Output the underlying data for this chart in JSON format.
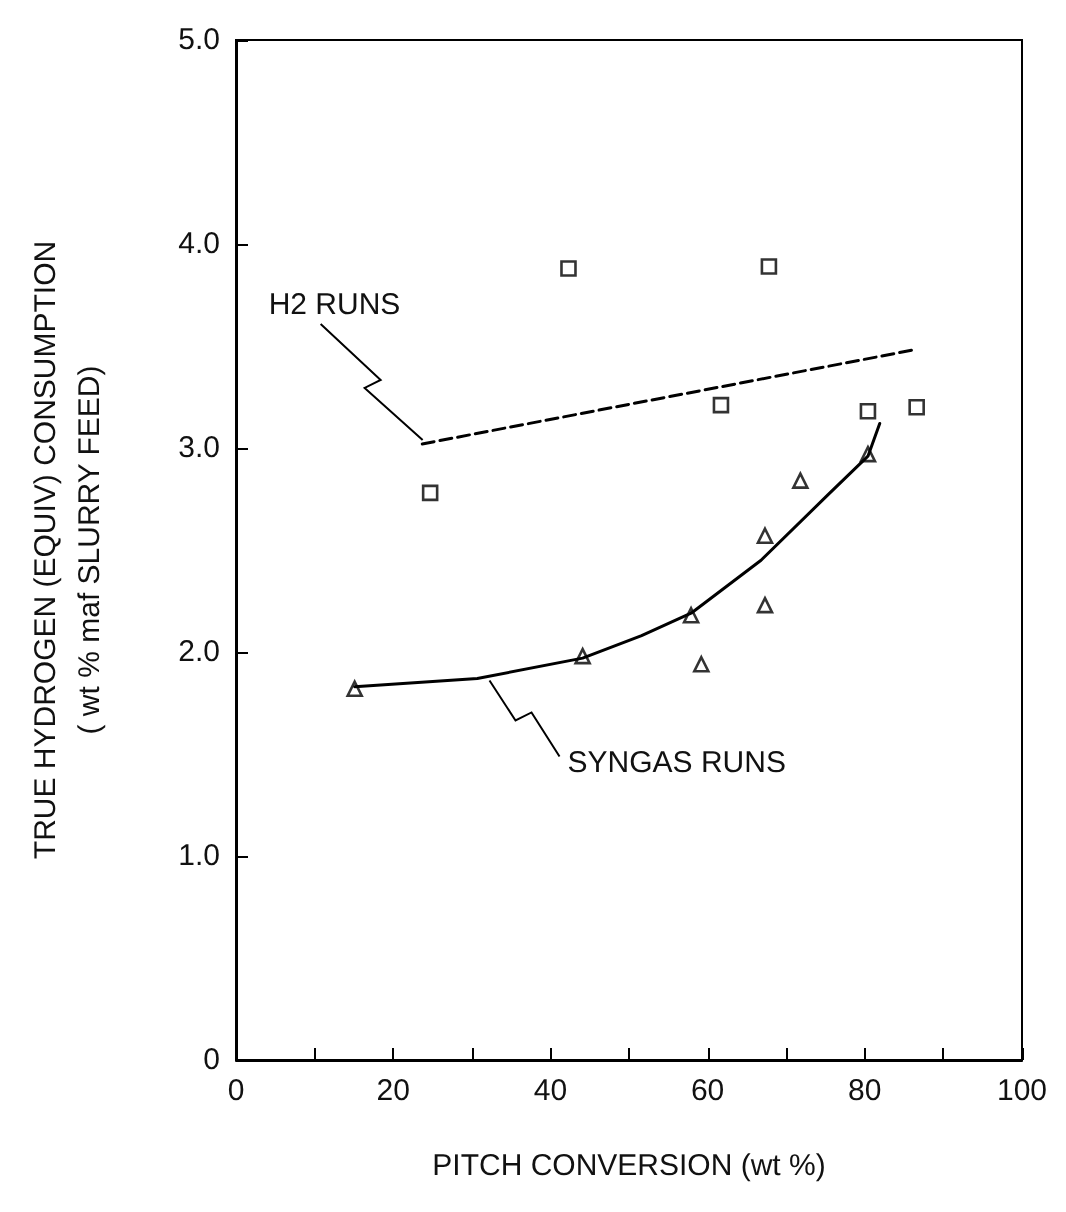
{
  "chart_data": {
    "type": "scatter",
    "xlabel": "PITCH CONVERSION (wt %)",
    "ylabel": "TRUE HYDROGEN (EQUIV) CONSUMPTION\n( wt % maf SLURRY FEED)",
    "xlim": [
      0,
      100
    ],
    "ylim": [
      0,
      5
    ],
    "xticks": [
      0,
      {
        "value": 10,
        "label": null
      },
      20,
      {
        "value": 30,
        "label": null
      },
      40,
      {
        "value": 50,
        "label": null
      },
      60,
      {
        "value": 70,
        "label": null
      },
      80,
      {
        "value": 90,
        "label": null
      },
      100
    ],
    "yticks": [
      0,
      {
        "value": 1,
        "label": "1.0"
      },
      {
        "value": 2,
        "label": "2.0"
      },
      {
        "value": 3,
        "label": "3.0"
      },
      {
        "value": 4,
        "label": "4.0"
      },
      {
        "value": 5,
        "label": "5.0"
      }
    ],
    "grid": false,
    "series": [
      {
        "marker": "square",
        "color": "#000000",
        "x": [
          24.7,
          42.3,
          67.8,
          61.7,
          80.4,
          86.6
        ],
        "values": [
          2.78,
          3.88,
          3.89,
          3.21,
          3.18,
          3.2
        ]
      },
      {
        "marker": "triangle",
        "color": "#000000",
        "x": [
          15.1,
          44.1,
          59.2,
          57.9,
          67.3,
          67.3,
          71.8,
          80.4
        ],
        "values": [
          1.82,
          1.98,
          1.94,
          2.18,
          2.23,
          2.57,
          2.84,
          2.97
        ]
      },
      {
        "type": "line",
        "marker": "none",
        "line_style": "dashed",
        "color": "#000000",
        "x": [
          23.7,
          86.1
        ],
        "values": [
          3.02,
          3.48
        ]
      },
      {
        "type": "line",
        "marker": "none",
        "line_style": "solid",
        "color": "#000000",
        "x": [
          15.1,
          30.7,
          44.1,
          51.6,
          57.9,
          66.8,
          75.3,
          80.4,
          81.9
        ],
        "values": [
          1.83,
          1.87,
          1.97,
          2.08,
          2.19,
          2.45,
          2.77,
          2.96,
          3.12
        ]
      }
    ],
    "annotations": [
      {
        "text": "H2 RUNS",
        "x": 24,
        "y": 3.02
      },
      {
        "text": "SYNGAS RUNS",
        "x": 32,
        "y": 1.88
      }
    ]
  }
}
